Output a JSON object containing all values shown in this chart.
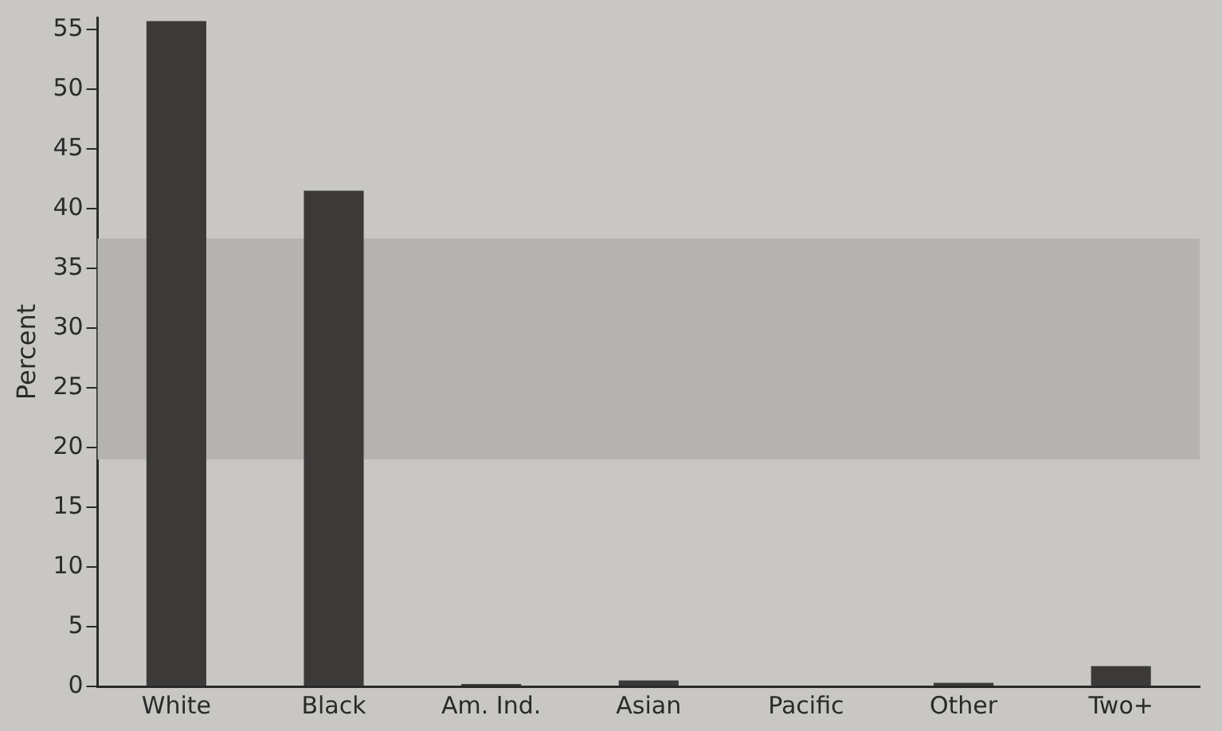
{
  "chart_data": {
    "type": "bar",
    "ylabel": "Percent",
    "categories": [
      "White",
      "Black",
      "Am. Ind.",
      "Asian",
      "Pacific",
      "Other",
      "Two+"
    ],
    "values": [
      55.7,
      41.5,
      0.2,
      0.5,
      0,
      0.3,
      1.7
    ],
    "color": "#3b3a39",
    "ylim": [
      0,
      56
    ],
    "yticks": [
      0,
      5,
      10,
      15,
      20,
      25,
      30,
      35,
      40,
      45,
      50,
      55
    ],
    "bands": [
      {
        "axis": "y",
        "from": 19,
        "to": 37.5,
        "color": "#b5b3b0"
      }
    ],
    "grid": false,
    "legend": false
  }
}
